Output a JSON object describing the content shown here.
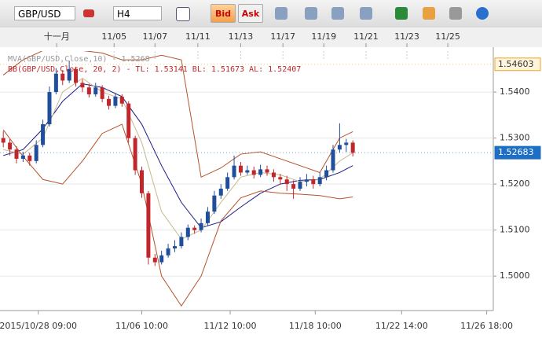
{
  "toolbar": {
    "symbol": "GBP/USD",
    "timeframe": "H4",
    "bid": "Bid",
    "ask": "Ask"
  },
  "chart_data": {
    "type": "candlestick",
    "indicator_labels": [
      "MVA(GBP/USD,Close,10) - 1.5268",
      "BB(GBP/USD,Close, 20, 2) -  TL: 1.53141  BL: 1.51673  AL: 1.52407"
    ],
    "open": [
      1.53,
      1.529,
      1.5275,
      1.5255,
      1.5262,
      1.525,
      1.5285,
      1.533,
      1.54,
      1.544,
      1.5425,
      1.545,
      1.542,
      1.541,
      1.5395,
      1.541,
      1.5385,
      1.537,
      1.539,
      1.5375,
      1.53,
      1.523,
      1.518,
      1.504,
      1.503,
      1.5045,
      1.506,
      1.5065,
      1.5085,
      1.5105,
      1.51,
      1.5115,
      1.514,
      1.5175,
      1.519,
      1.5215,
      1.524,
      1.5225,
      1.523,
      1.522,
      1.5232,
      1.5225,
      1.5215,
      1.521,
      1.52,
      1.519,
      1.5205,
      1.521,
      1.52,
      1.5215,
      1.523,
      1.5275,
      1.5285,
      1.529
    ],
    "high": [
      1.5315,
      1.5298,
      1.5282,
      1.527,
      1.5268,
      1.5295,
      1.534,
      1.5412,
      1.5452,
      1.5448,
      1.5468,
      1.5455,
      1.5428,
      1.5418,
      1.542,
      1.5415,
      1.5392,
      1.5398,
      1.5395,
      1.538,
      1.5305,
      1.5238,
      1.5185,
      1.5048,
      1.5055,
      1.507,
      1.5078,
      1.5095,
      1.5112,
      1.511,
      1.5125,
      1.515,
      1.5185,
      1.52,
      1.5225,
      1.5262,
      1.5248,
      1.524,
      1.5238,
      1.5242,
      1.524,
      1.5232,
      1.5222,
      1.5218,
      1.5208,
      1.5215,
      1.5222,
      1.5218,
      1.5225,
      1.524,
      1.5285,
      1.5332,
      1.5298,
      1.5295
    ],
    "low": [
      1.528,
      1.5262,
      1.5245,
      1.5248,
      1.524,
      1.5245,
      1.528,
      1.5325,
      1.5395,
      1.5415,
      1.542,
      1.5412,
      1.54,
      1.5388,
      1.539,
      1.5378,
      1.5362,
      1.5365,
      1.5368,
      1.529,
      1.522,
      1.517,
      1.5025,
      1.5022,
      1.5025,
      1.504,
      1.5052,
      1.506,
      1.5078,
      1.5092,
      1.5095,
      1.511,
      1.5135,
      1.5168,
      1.5185,
      1.521,
      1.5218,
      1.522,
      1.5212,
      1.5215,
      1.5218,
      1.5205,
      1.52,
      1.5185,
      1.5168,
      1.5185,
      1.5195,
      1.519,
      1.5195,
      1.5208,
      1.5225,
      1.5268,
      1.527,
      1.526
    ],
    "close": [
      1.529,
      1.5275,
      1.5255,
      1.5262,
      1.525,
      1.5285,
      1.533,
      1.54,
      1.544,
      1.5425,
      1.545,
      1.542,
      1.541,
      1.5395,
      1.541,
      1.5385,
      1.537,
      1.539,
      1.5375,
      1.53,
      1.523,
      1.518,
      1.504,
      1.503,
      1.5045,
      1.506,
      1.5065,
      1.5085,
      1.5105,
      1.51,
      1.5115,
      1.514,
      1.5175,
      1.519,
      1.5215,
      1.524,
      1.5225,
      1.523,
      1.522,
      1.5232,
      1.5225,
      1.5215,
      1.521,
      1.52,
      1.519,
      1.5205,
      1.521,
      1.52,
      1.5215,
      1.523,
      1.5275,
      1.5285,
      1.529,
      1.5268
    ],
    "up_color": "#1f4e9c",
    "down_color": "#c0272d",
    "indicators": [
      {
        "color": "#1a1a8c",
        "x": [
          0,
          3,
          6,
          9,
          12,
          15,
          18,
          21,
          24,
          27,
          30,
          33,
          36,
          39,
          42,
          45,
          48,
          51,
          53
        ],
        "values": [
          1.5262,
          1.5275,
          1.532,
          1.538,
          1.5418,
          1.541,
          1.539,
          1.533,
          1.524,
          1.516,
          1.5105,
          1.5118,
          1.515,
          1.518,
          1.52,
          1.5208,
          1.521,
          1.5225,
          1.524
        ]
      },
      {
        "color": "#c8b88a",
        "x": [
          0,
          3,
          6,
          9,
          12,
          15,
          18,
          21,
          24,
          27,
          30,
          33,
          36,
          39,
          42,
          45,
          48,
          51,
          53
        ],
        "values": [
          1.5275,
          1.5265,
          1.53,
          1.54,
          1.543,
          1.54,
          1.5385,
          1.529,
          1.514,
          1.508,
          1.51,
          1.516,
          1.5215,
          1.5225,
          1.522,
          1.5205,
          1.521,
          1.525,
          1.5268
        ]
      },
      {
        "color": "#b5532a",
        "x": [
          0,
          3,
          6,
          9,
          12,
          15,
          18,
          21,
          24,
          27,
          30,
          33,
          36,
          39,
          42,
          45,
          48,
          51,
          53
        ],
        "values": [
          1.5437,
          1.547,
          1.549,
          1.549,
          1.549,
          1.5485,
          1.547,
          1.547,
          1.548,
          1.547,
          1.5215,
          1.5235,
          1.5265,
          1.527,
          1.5255,
          1.524,
          1.5225,
          1.53,
          1.5314
        ]
      },
      {
        "color": "#b5532a",
        "x": [
          0,
          3,
          6,
          9,
          12,
          15,
          18,
          21,
          24,
          27,
          30,
          33,
          36,
          39,
          42,
          45,
          48,
          51,
          53
        ],
        "values": [
          1.5318,
          1.526,
          1.521,
          1.52,
          1.525,
          1.531,
          1.533,
          1.52,
          1.5,
          1.4935,
          1.5,
          1.512,
          1.517,
          1.5185,
          1.518,
          1.5178,
          1.5175,
          1.5168,
          1.5172
        ]
      }
    ],
    "xlim": [
      -0.5,
      74.3
    ],
    "xticks": [
      {
        "value": 5.3,
        "label": "2015/10/28 09:00"
      },
      {
        "value": 21,
        "label": "11/06 10:00"
      },
      {
        "value": 34.4,
        "label": "11/12 10:00"
      },
      {
        "value": 47.3,
        "label": "11/18 10:00"
      },
      {
        "value": 60.4,
        "label": "11/22 14:00"
      },
      {
        "value": 73.3,
        "label": "11/26 18:00"
      }
    ],
    "top_xticks": [
      {
        "value": 8.1,
        "label": "十一月"
      },
      {
        "value": 16.8,
        "label": "11/05"
      },
      {
        "value": 23,
        "label": "11/07"
      },
      {
        "value": 29.5,
        "label": "11/11"
      },
      {
        "value": 36,
        "label": "11/13"
      },
      {
        "value": 42.4,
        "label": "11/17"
      },
      {
        "value": 48.6,
        "label": "11/19"
      },
      {
        "value": 55,
        "label": "11/21"
      },
      {
        "value": 61.2,
        "label": "11/23"
      },
      {
        "value": 67.4,
        "label": "11/25"
      }
    ],
    "ylim": [
      1.4925,
      1.5489
    ],
    "yticks": [
      {
        "value": 1.5,
        "label": "1.5000"
      },
      {
        "value": 1.51,
        "label": "1.5100"
      },
      {
        "value": 1.52,
        "label": "1.5200"
      },
      {
        "value": 1.53,
        "label": "1.5300"
      },
      {
        "value": 1.54,
        "label": "1.5400"
      }
    ],
    "grid": true,
    "price_markers": [
      {
        "value": 1.54603,
        "color": "#f3a21b"
      },
      {
        "value": 1.52683,
        "color": "#1e6fc4"
      }
    ]
  }
}
